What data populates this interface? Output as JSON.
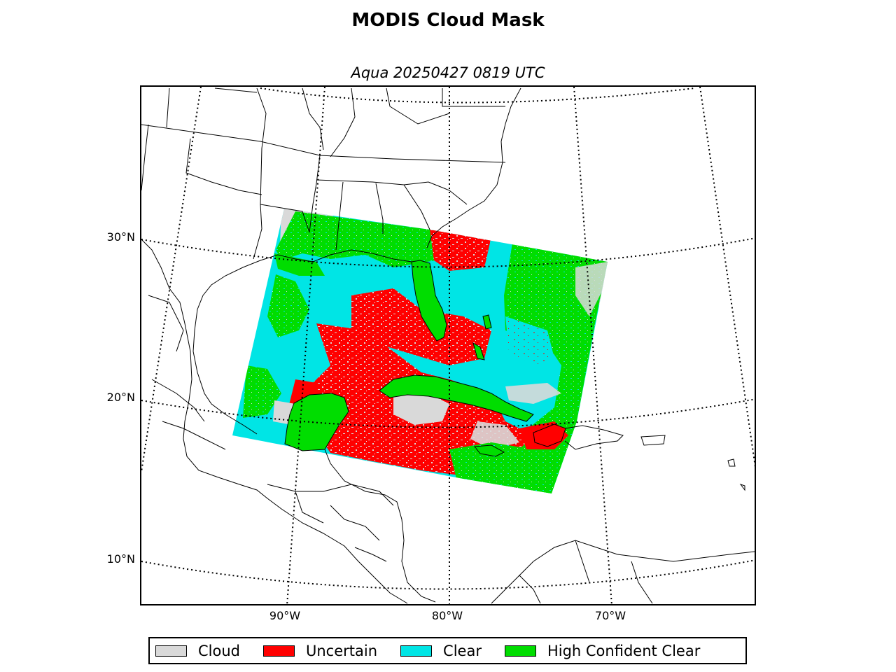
{
  "title": "MODIS Cloud Mask",
  "subtitle": "Aqua 20250427 0819 UTC",
  "latitude_labels": [
    "30°N",
    "20°N",
    "10°N"
  ],
  "longitude_labels": [
    "90°W",
    "80°W",
    "70°W"
  ],
  "legend": [
    {
      "label": "Cloud",
      "color": "#d9d9d9"
    },
    {
      "label": "Uncertain",
      "color": "#ff0000"
    },
    {
      "label": "Clear",
      "color": "#00e5e5"
    },
    {
      "label": "High Confident Clear",
      "color": "#00dd00"
    }
  ],
  "colors": {
    "cloud": "#d9d9d9",
    "uncertain": "#ff0000",
    "clear": "#00e5e5",
    "high_confident_clear": "#00dd00",
    "land_outline": "#000000",
    "background": "#ffffff"
  }
}
